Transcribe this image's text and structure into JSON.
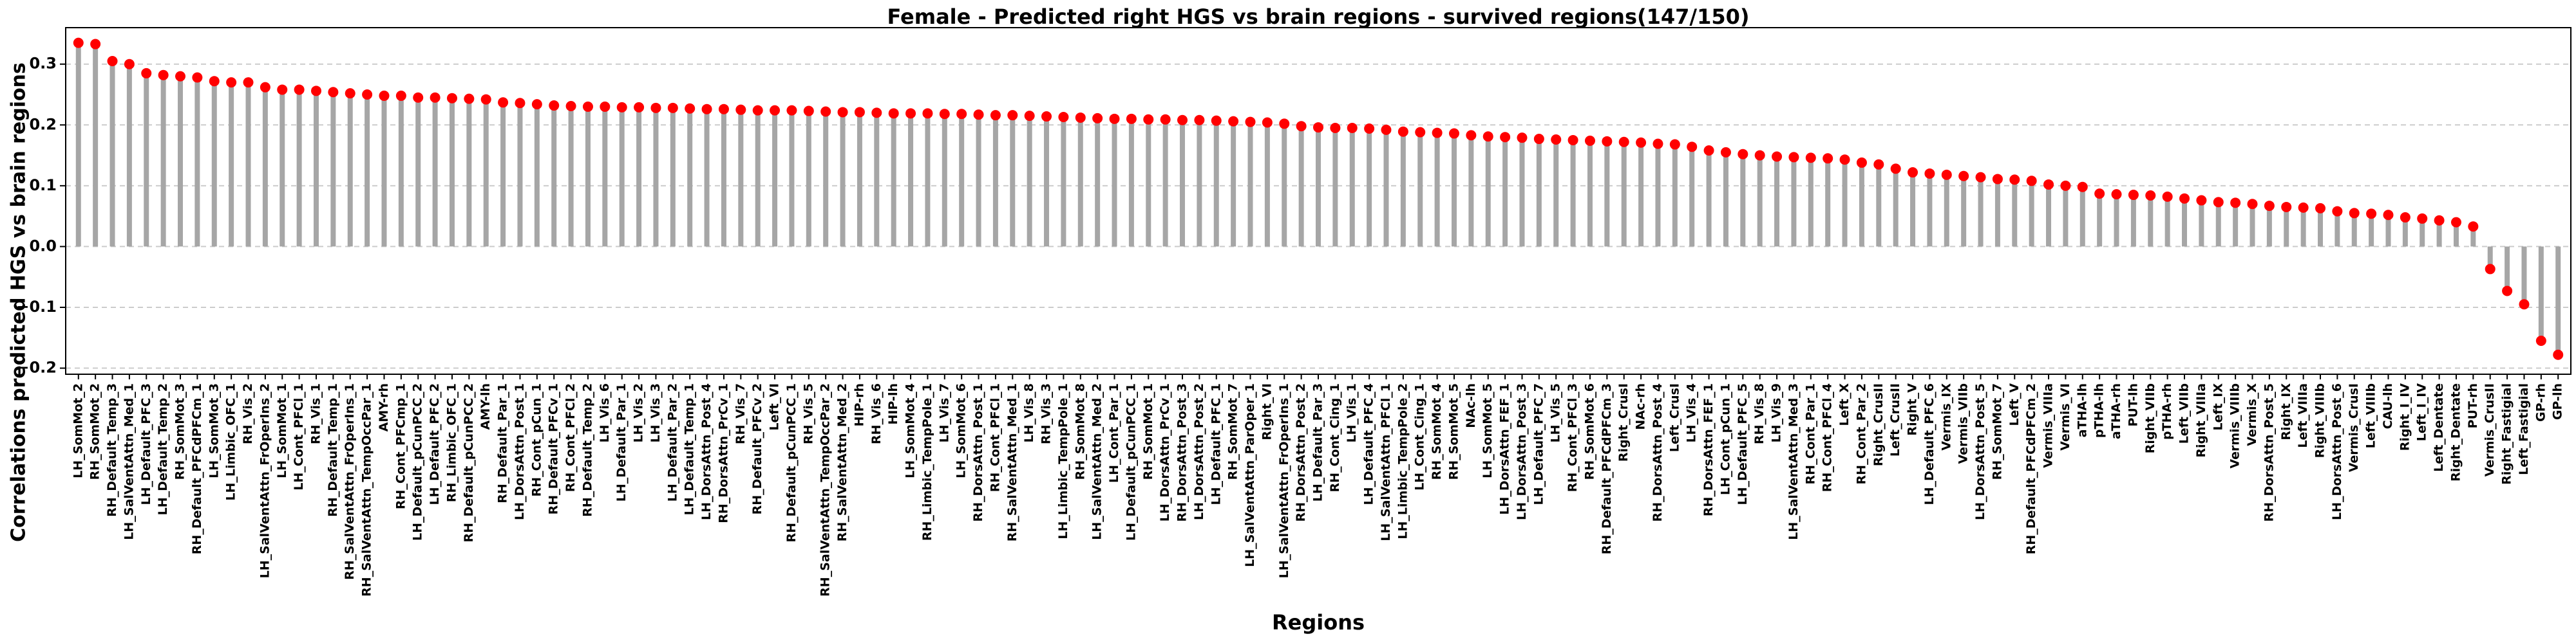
{
  "chart_data": {
    "type": "lollipop",
    "title": "Female - Predicted right HGS vs brain regions - survived regions(147/150)",
    "x_label": "Regions",
    "y_label": "Correlations predicted HGS vs brain regions",
    "categories": [
      "LH_SomMot_2",
      "RH_SomMot_2",
      "RH_Default_Temp_3",
      "LH_SalVentAttn_Med_1",
      "LH_Default_PFC_3",
      "LH_Default_Temp_2",
      "RH_SomMot_3",
      "RH_Default_PFCdPFCm_1",
      "LH_SomMot_3",
      "LH_Limbic_OFC_1",
      "RH_Vis_2",
      "LH_SalVentAttn_FrOperIns_2",
      "LH_SomMot_1",
      "LH_Cont_PFCl_1",
      "RH_Vis_1",
      "RH_Default_Temp_1",
      "RH_SalVentAttn_FrOperIns_1",
      "RH_SalVentAttn_TempOccPar_1",
      "AMY-rh",
      "RH_Cont_PFCmp_1",
      "LH_Default_pCunPCC_2",
      "LH_Default_PFC_2",
      "RH_Limbic_OFC_1",
      "RH_Default_pCunPCC_2",
      "AMY-lh",
      "RH_Default_Par_1",
      "LH_DorsAttn_Post_1",
      "RH_Cont_pCun_1",
      "RH_Default_PFCv_1",
      "RH_Cont_PFCl_2",
      "RH_Default_Temp_2",
      "LH_Vis_6",
      "LH_Default_Par_1",
      "LH_Vis_2",
      "LH_Vis_3",
      "LH_Default_Par_2",
      "LH_Default_Temp_1",
      "LH_DorsAttn_Post_4",
      "RH_DorsAttn_PrCv_1",
      "RH_Vis_7",
      "RH_Default_PFCv_2",
      "Left_VI",
      "RH_Default_pCunPCC_1",
      "RH_Vis_5",
      "RH_SalVentAttn_TempOccPar_2",
      "RH_SalVentAttn_Med_2",
      "HIP-rh",
      "RH_Vis_6",
      "HIP-lh",
      "LH_SomMot_4",
      "RH_Limbic_TempPole_1",
      "LH_Vis_7",
      "LH_SomMot_6",
      "RH_DorsAttn_Post_1",
      "RH_Cont_PFCl_1",
      "RH_SalVentAttn_Med_1",
      "LH_Vis_8",
      "RH_Vis_3",
      "LH_Limbic_TempPole_1",
      "RH_SomMot_8",
      "LH_SalVentAttn_Med_2",
      "LH_Cont_Par_1",
      "LH_Default_pCunPCC_1",
      "RH_SomMot_1",
      "LH_DorsAttn_PrCv_1",
      "RH_DorsAttn_Post_3",
      "LH_DorsAttn_Post_2",
      "LH_Default_PFC_1",
      "RH_SomMot_7",
      "LH_SalVentAttn_ParOper_1",
      "Right_VI",
      "LH_SalVentAttn_FrOperIns_1",
      "RH_DorsAttn_Post_2",
      "LH_Default_Par_3",
      "RH_Cont_Cing_1",
      "LH_Vis_1",
      "LH_Default_PFC_4",
      "LH_SalVentAttn_PFCl_1",
      "LH_Limbic_TempPole_2",
      "LH_Cont_Cing_1",
      "RH_SomMot_4",
      "RH_SomMot_5",
      "NAc-lh",
      "LH_SomMot_5",
      "LH_DorsAttn_FEF_1",
      "LH_DorsAttn_Post_3",
      "LH_Default_PFC_7",
      "LH_Vis_5",
      "RH_Cont_PFCl_3",
      "RH_SomMot_6",
      "RH_Default_PFCdPFCm_3",
      "Right_CrusI",
      "NAc-rh",
      "RH_DorsAttn_Post_4",
      "Left_CrusI",
      "LH_Vis_4",
      "RH_DorsAttn_FEF_1",
      "LH_Cont_pCun_1",
      "LH_Default_PFC_5",
      "RH_Vis_8",
      "LH_Vis_9",
      "LH_SalVentAttn_Med_3",
      "RH_Cont_Par_1",
      "RH_Cont_PFCl_4",
      "Left_X",
      "RH_Cont_Par_2",
      "Right_CrusII",
      "Left_CrusII",
      "Right_V",
      "LH_Default_PFC_6",
      "Vermis_IX",
      "Vermis_VIIb",
      "LH_DorsAttn_Post_5",
      "RH_SomMot_7",
      "Left_V",
      "RH_Default_PFCdPFCm_2",
      "Vermis_VIIIa",
      "Vermis_VI",
      "aTHA-lh",
      "pTHA-lh",
      "aTHA-rh",
      "PUT-lh",
      "Right_VIIb",
      "pTHA-rh",
      "Left_VIIb",
      "Right_VIIIa",
      "Left_IX",
      "Vermis_VIIIb",
      "Vermis_X",
      "RH_DorsAttn_Post_5",
      "Right_IX",
      "Left_VIIIa",
      "Right_VIIIb",
      "LH_DorsAttn_Post_6",
      "Vermis_CrusI",
      "Left_VIIIb",
      "CAU-lh",
      "Right_I_IV",
      "Left_I_IV",
      "Left_Dentate",
      "Right_Dentate",
      "PUT-rh",
      "Vermis_CrusII",
      "Right_Fastigial",
      "Left_Fastigial",
      "GP-rh",
      "GP-lh"
    ],
    "values": [
      0.335,
      0.333,
      0.305,
      0.3,
      0.285,
      0.282,
      0.28,
      0.278,
      0.272,
      0.27,
      0.27,
      0.262,
      0.258,
      0.258,
      0.256,
      0.254,
      0.252,
      0.25,
      0.248,
      0.248,
      0.245,
      0.245,
      0.244,
      0.243,
      0.242,
      0.237,
      0.236,
      0.234,
      0.232,
      0.231,
      0.23,
      0.23,
      0.229,
      0.229,
      0.228,
      0.228,
      0.227,
      0.226,
      0.226,
      0.225,
      0.224,
      0.224,
      0.224,
      0.223,
      0.222,
      0.221,
      0.221,
      0.22,
      0.219,
      0.219,
      0.219,
      0.218,
      0.218,
      0.217,
      0.216,
      0.216,
      0.215,
      0.214,
      0.213,
      0.212,
      0.211,
      0.21,
      0.21,
      0.209,
      0.209,
      0.208,
      0.208,
      0.207,
      0.206,
      0.205,
      0.204,
      0.202,
      0.198,
      0.196,
      0.195,
      0.195,
      0.194,
      0.192,
      0.189,
      0.188,
      0.187,
      0.186,
      0.183,
      0.181,
      0.18,
      0.179,
      0.177,
      0.176,
      0.175,
      0.174,
      0.173,
      0.172,
      0.171,
      0.169,
      0.168,
      0.164,
      0.158,
      0.155,
      0.152,
      0.15,
      0.148,
      0.147,
      0.146,
      0.145,
      0.143,
      0.138,
      0.135,
      0.128,
      0.122,
      0.12,
      0.118,
      0.116,
      0.114,
      0.111,
      0.11,
      0.108,
      0.102,
      0.1,
      0.098,
      0.087,
      0.086,
      0.085,
      0.084,
      0.082,
      0.079,
      0.076,
      0.073,
      0.072,
      0.07,
      0.067,
      0.065,
      0.064,
      0.063,
      0.058,
      0.055,
      0.054,
      0.052,
      0.048,
      0.046,
      0.043,
      0.04,
      0.033,
      -0.037,
      -0.073,
      -0.095,
      -0.155,
      -0.178
    ],
    "stem_color": "#a6a6a6",
    "marker_color": "#ff0000",
    "ylim": [
      -0.21,
      0.36
    ],
    "yticks": [
      {
        "value": -0.2,
        "label": "−0.2"
      },
      {
        "value": -0.1,
        "label": "−0.1"
      },
      {
        "value": 0,
        "label": "0.0"
      },
      0.1,
      0.2,
      0.3
    ],
    "grid": true
  }
}
